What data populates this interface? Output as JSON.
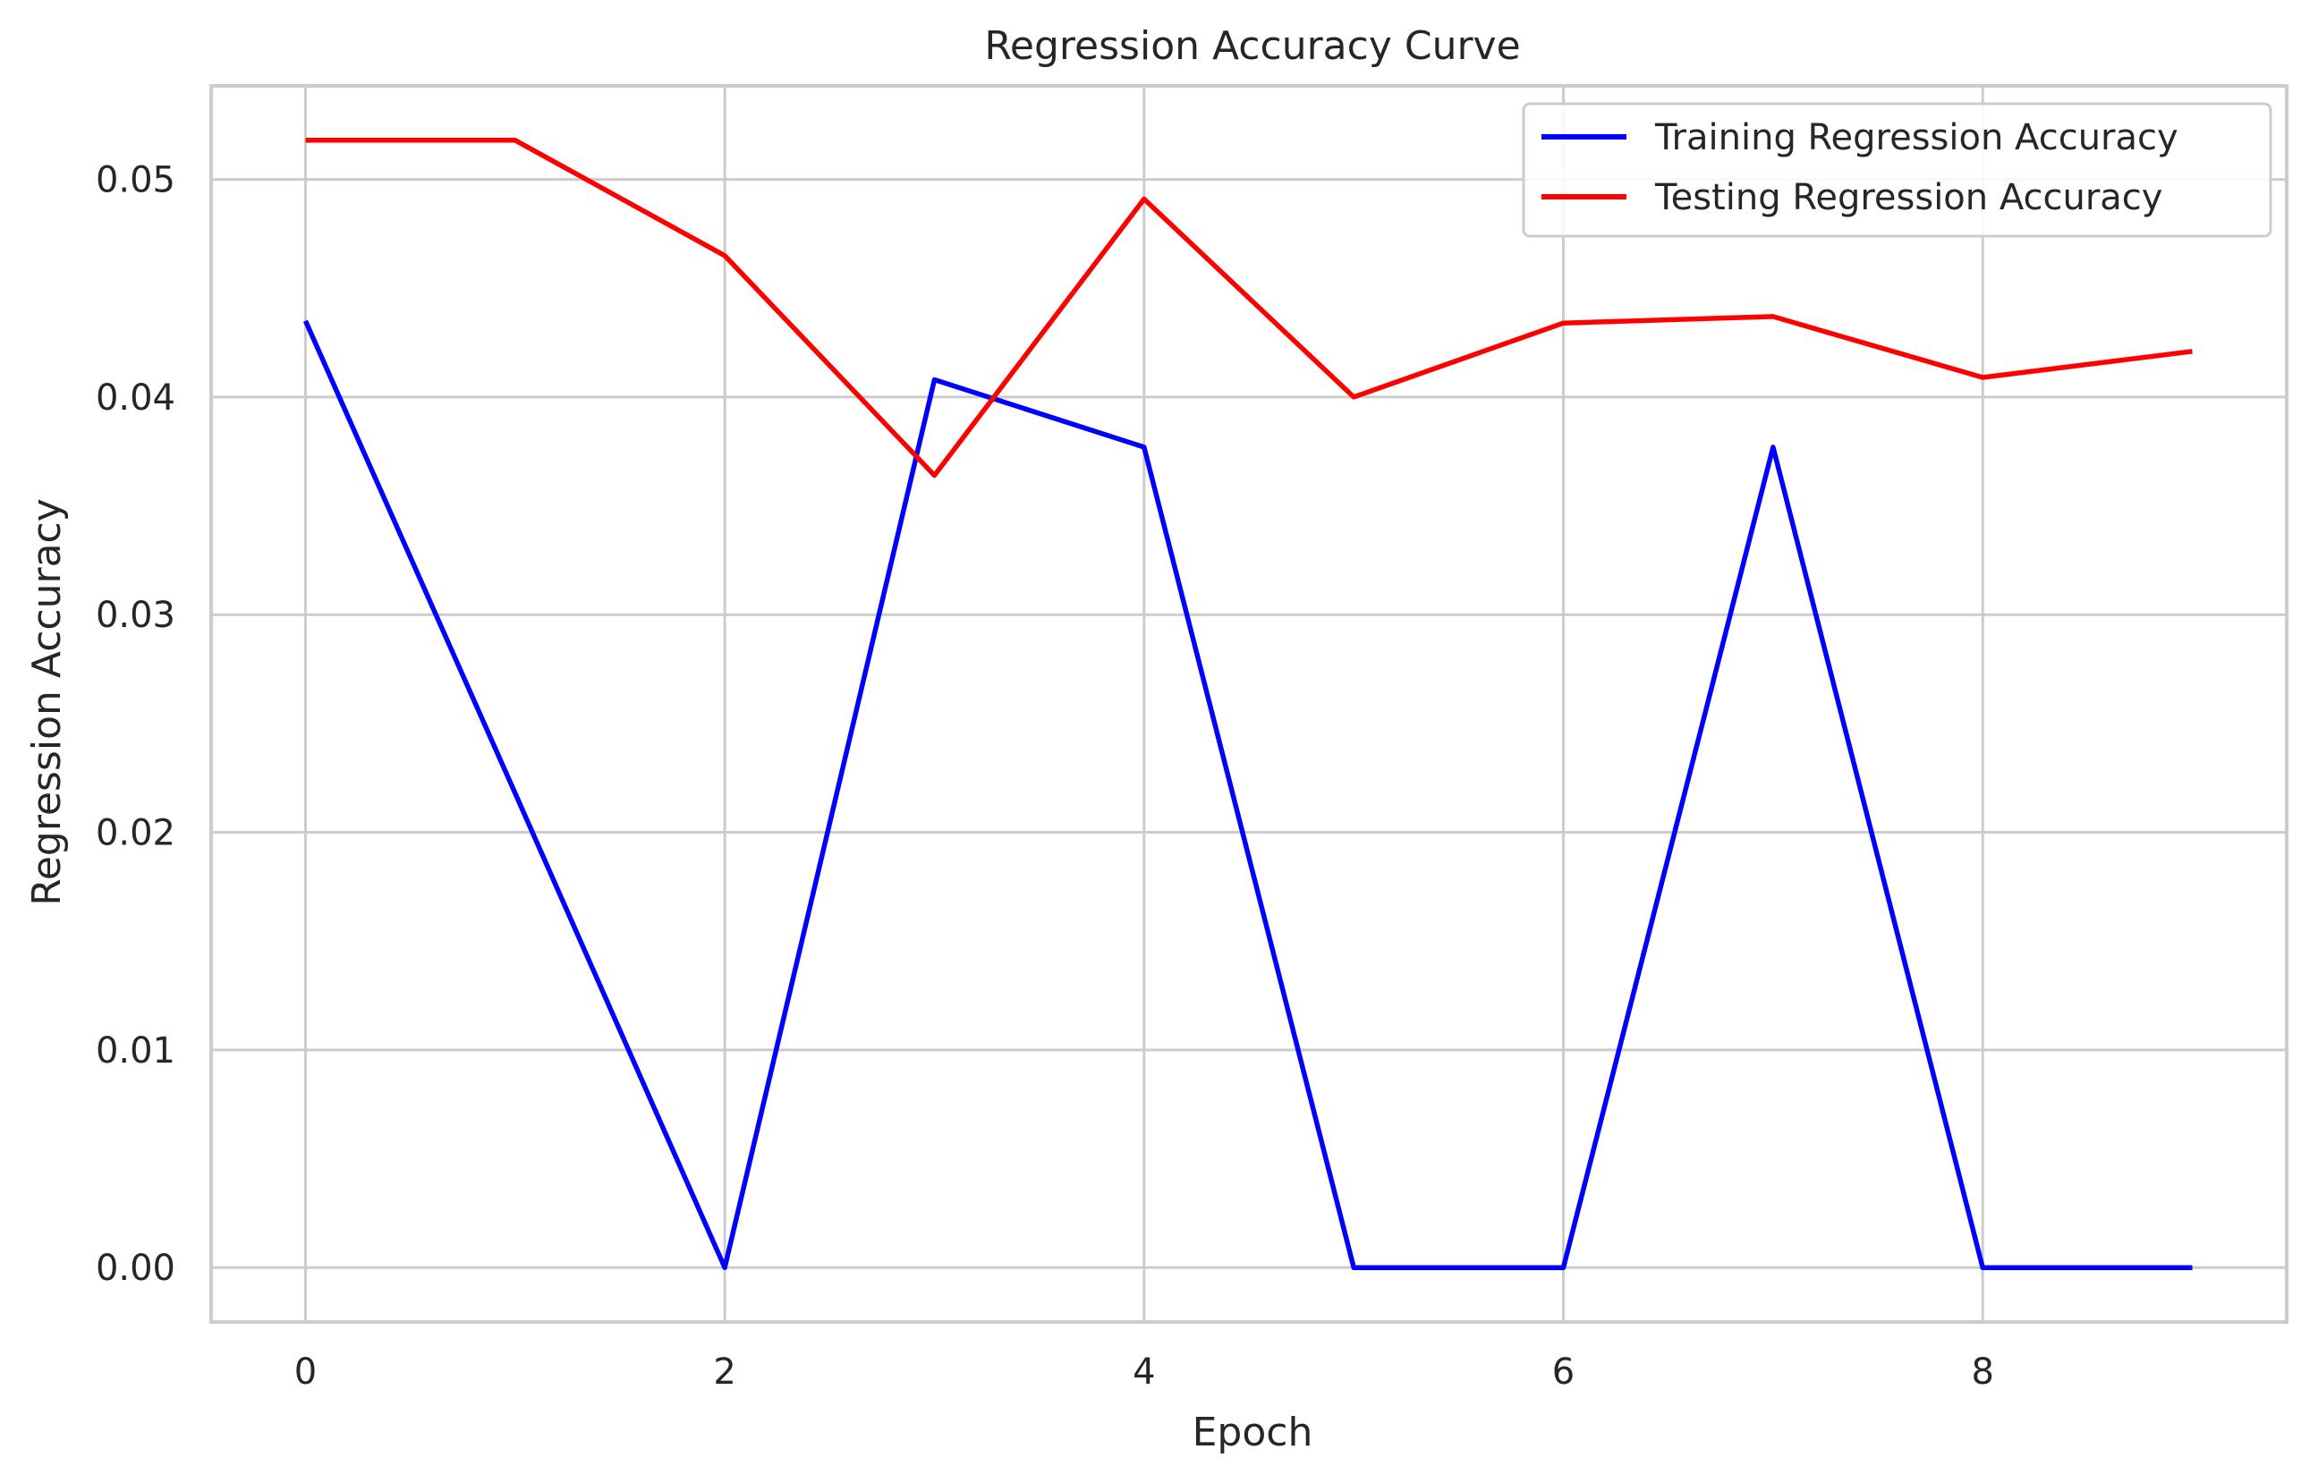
{
  "chart_data": {
    "type": "line",
    "title": "Regression Accuracy Curve",
    "xlabel": "Epoch",
    "ylabel": "Regression Accuracy",
    "x": [
      0,
      1,
      2,
      3,
      4,
      5,
      6,
      7,
      8,
      9
    ],
    "xlim": [
      -0.45,
      9.45
    ],
    "ylim": [
      -0.0025,
      0.0543
    ],
    "xticks": [
      0,
      2,
      4,
      6,
      8
    ],
    "xtick_labels": [
      "0",
      "2",
      "4",
      "6",
      "8"
    ],
    "yticks": [
      0.0,
      0.01,
      0.02,
      0.03,
      0.04,
      0.05
    ],
    "ytick_labels": [
      "0.00",
      "0.01",
      "0.02",
      "0.03",
      "0.04",
      "0.05"
    ],
    "grid": true,
    "legend_position": "top-right",
    "series": [
      {
        "name": "Training Regression Accuracy",
        "color": "#0000ff",
        "values": [
          0.0435,
          0.0218,
          0.0,
          0.0408,
          0.0377,
          0.0,
          0.0,
          0.0377,
          0.0,
          0.0
        ]
      },
      {
        "name": "Testing Regression Accuracy",
        "color": "#ff0000",
        "values": [
          0.0518,
          0.0518,
          0.0465,
          0.0364,
          0.0491,
          0.04,
          0.0434,
          0.0437,
          0.0409,
          0.0421
        ]
      }
    ]
  }
}
